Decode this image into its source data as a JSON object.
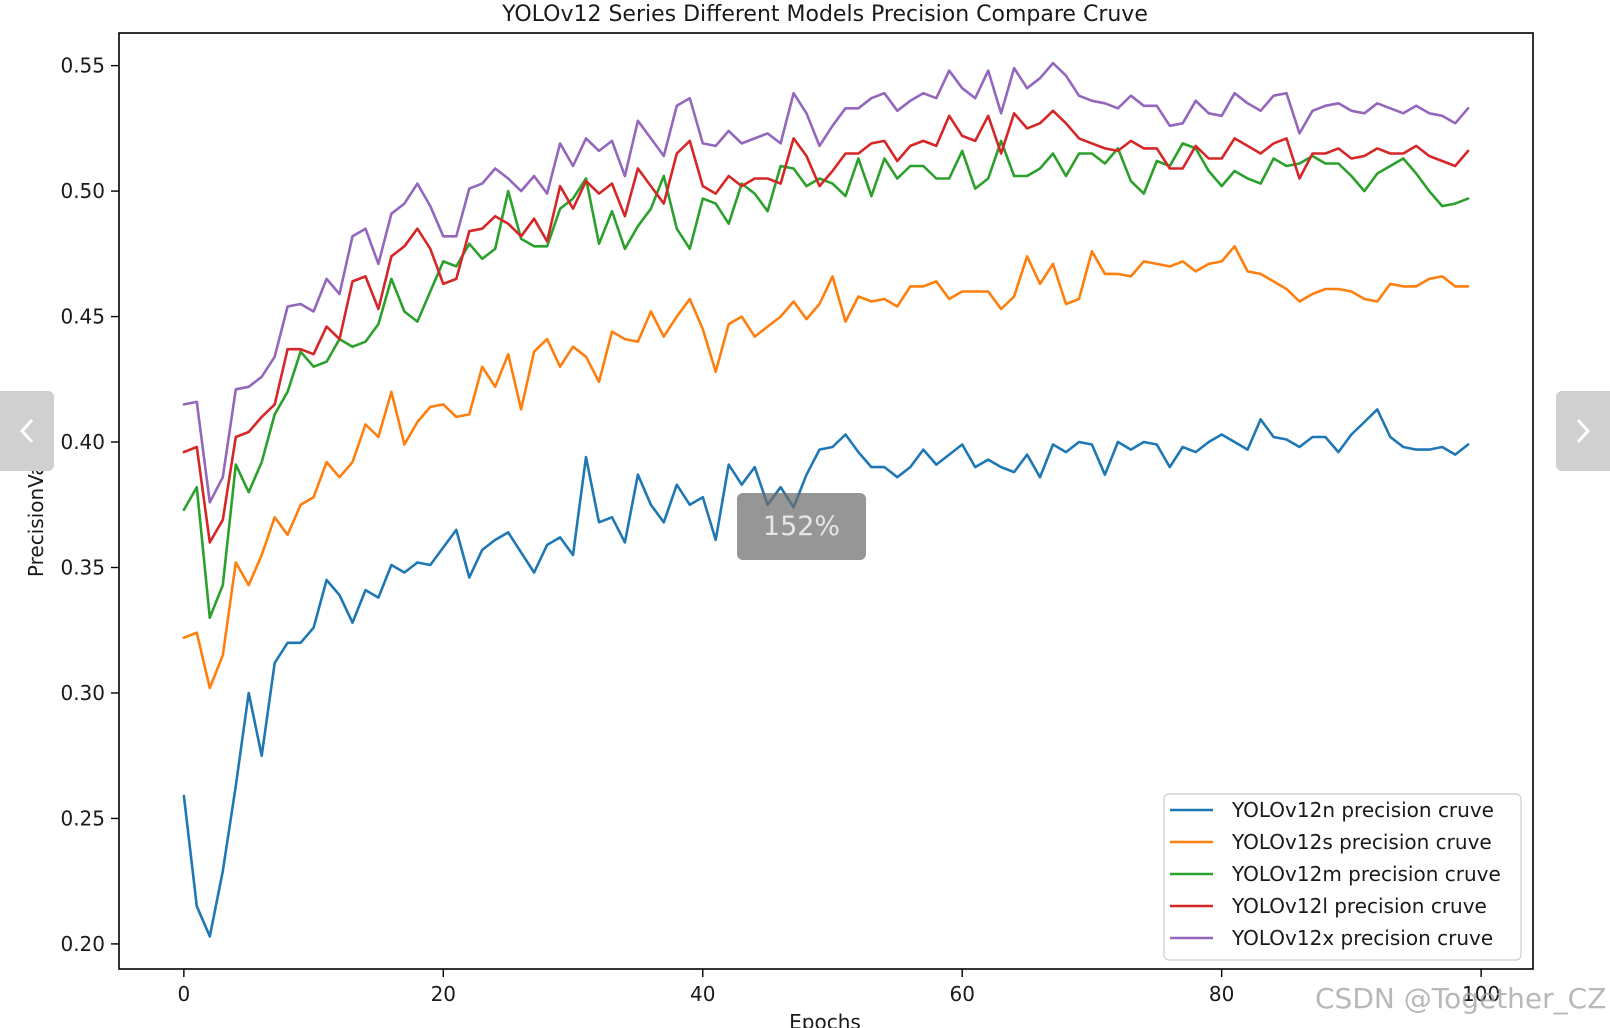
{
  "viewer": {
    "zoom_label": "152%",
    "prev_icon": "chevron-left-icon",
    "next_icon": "chevron-right-icon"
  },
  "watermark": "CSDN @Together_CZ",
  "chart_data": {
    "type": "line",
    "title": "YOLOv12 Series Different Models Precision Compare Cruve",
    "xlabel": "Epochs",
    "ylabel": "PrecisionValue",
    "xlim": [
      -5,
      104
    ],
    "ylim": [
      0.19,
      0.563
    ],
    "xticks": [
      0,
      20,
      40,
      60,
      80,
      100
    ],
    "yticks": [
      0.2,
      0.25,
      0.3,
      0.35,
      0.4,
      0.45,
      0.5,
      0.55
    ],
    "grid": false,
    "legend_position": "lower-right",
    "series": [
      {
        "name": "YOLOv12n precision cruve",
        "color": "#1f77b4",
        "values": [
          0.259,
          0.215,
          0.203,
          0.229,
          0.263,
          0.3,
          0.275,
          0.312,
          0.32,
          0.32,
          0.326,
          0.345,
          0.339,
          0.328,
          0.341,
          0.338,
          0.351,
          0.348,
          0.352,
          0.351,
          0.358,
          0.365,
          0.346,
          0.357,
          0.361,
          0.364,
          0.356,
          0.348,
          0.359,
          0.362,
          0.355,
          0.394,
          0.368,
          0.37,
          0.36,
          0.387,
          0.375,
          0.368,
          0.383,
          0.375,
          0.378,
          0.361,
          0.391,
          0.383,
          0.39,
          0.375,
          0.382,
          0.374,
          0.387,
          0.397,
          0.398,
          0.403,
          0.396,
          0.39,
          0.39,
          0.386,
          0.39,
          0.397,
          0.391,
          0.395,
          0.399,
          0.39,
          0.393,
          0.39,
          0.388,
          0.395,
          0.386,
          0.399,
          0.396,
          0.4,
          0.399,
          0.387,
          0.4,
          0.397,
          0.4,
          0.399,
          0.39,
          0.398,
          0.396,
          0.4,
          0.403,
          0.4,
          0.397,
          0.409,
          0.402,
          0.401,
          0.398,
          0.402,
          0.402,
          0.396,
          0.403,
          0.408,
          0.413,
          0.402,
          0.398,
          0.397,
          0.397,
          0.398,
          0.395,
          0.399
        ]
      },
      {
        "name": "YOLOv12s precision cruve",
        "color": "#ff7f0e",
        "values": [
          0.322,
          0.324,
          0.302,
          0.315,
          0.352,
          0.343,
          0.355,
          0.37,
          0.363,
          0.375,
          0.378,
          0.392,
          0.386,
          0.392,
          0.407,
          0.402,
          0.42,
          0.399,
          0.408,
          0.414,
          0.415,
          0.41,
          0.411,
          0.43,
          0.422,
          0.435,
          0.413,
          0.436,
          0.441,
          0.43,
          0.438,
          0.434,
          0.424,
          0.444,
          0.441,
          0.44,
          0.452,
          0.442,
          0.45,
          0.457,
          0.445,
          0.428,
          0.447,
          0.45,
          0.442,
          0.446,
          0.45,
          0.456,
          0.449,
          0.455,
          0.466,
          0.448,
          0.458,
          0.456,
          0.457,
          0.454,
          0.462,
          0.462,
          0.464,
          0.457,
          0.46,
          0.46,
          0.46,
          0.453,
          0.458,
          0.474,
          0.463,
          0.471,
          0.455,
          0.457,
          0.476,
          0.467,
          0.467,
          0.466,
          0.472,
          0.471,
          0.47,
          0.472,
          0.468,
          0.471,
          0.472,
          0.478,
          0.468,
          0.467,
          0.464,
          0.461,
          0.456,
          0.459,
          0.461,
          0.461,
          0.46,
          0.457,
          0.456,
          0.463,
          0.462,
          0.462,
          0.465,
          0.466,
          0.462,
          0.462
        ]
      },
      {
        "name": "YOLOv12m precision cruve",
        "color": "#2ca02c",
        "values": [
          0.373,
          0.382,
          0.33,
          0.343,
          0.391,
          0.38,
          0.392,
          0.411,
          0.42,
          0.436,
          0.43,
          0.432,
          0.441,
          0.438,
          0.44,
          0.447,
          0.465,
          0.452,
          0.448,
          0.46,
          0.472,
          0.47,
          0.479,
          0.473,
          0.477,
          0.5,
          0.481,
          0.478,
          0.478,
          0.493,
          0.497,
          0.505,
          0.479,
          0.492,
          0.477,
          0.486,
          0.493,
          0.506,
          0.485,
          0.477,
          0.497,
          0.495,
          0.487,
          0.503,
          0.499,
          0.492,
          0.51,
          0.509,
          0.502,
          0.505,
          0.503,
          0.498,
          0.513,
          0.498,
          0.513,
          0.505,
          0.51,
          0.51,
          0.505,
          0.505,
          0.516,
          0.501,
          0.505,
          0.52,
          0.506,
          0.506,
          0.509,
          0.515,
          0.506,
          0.515,
          0.515,
          0.511,
          0.517,
          0.504,
          0.499,
          0.512,
          0.51,
          0.519,
          0.517,
          0.508,
          0.502,
          0.508,
          0.505,
          0.503,
          0.513,
          0.51,
          0.511,
          0.514,
          0.511,
          0.511,
          0.506,
          0.5,
          0.507,
          0.51,
          0.513,
          0.507,
          0.5,
          0.494,
          0.495,
          0.497
        ]
      },
      {
        "name": "YOLOv12l precision cruve",
        "color": "#d62728",
        "values": [
          0.396,
          0.398,
          0.36,
          0.369,
          0.402,
          0.404,
          0.41,
          0.415,
          0.437,
          0.437,
          0.435,
          0.446,
          0.441,
          0.464,
          0.466,
          0.453,
          0.474,
          0.478,
          0.485,
          0.477,
          0.463,
          0.465,
          0.484,
          0.485,
          0.49,
          0.487,
          0.482,
          0.489,
          0.48,
          0.502,
          0.493,
          0.504,
          0.499,
          0.503,
          0.49,
          0.509,
          0.502,
          0.495,
          0.515,
          0.52,
          0.502,
          0.499,
          0.506,
          0.502,
          0.505,
          0.505,
          0.503,
          0.521,
          0.514,
          0.502,
          0.508,
          0.515,
          0.515,
          0.519,
          0.52,
          0.512,
          0.518,
          0.52,
          0.518,
          0.53,
          0.522,
          0.52,
          0.53,
          0.515,
          0.531,
          0.525,
          0.527,
          0.532,
          0.527,
          0.521,
          0.519,
          0.517,
          0.516,
          0.52,
          0.517,
          0.517,
          0.509,
          0.509,
          0.518,
          0.513,
          0.513,
          0.521,
          0.518,
          0.515,
          0.519,
          0.521,
          0.505,
          0.515,
          0.515,
          0.517,
          0.513,
          0.514,
          0.517,
          0.515,
          0.515,
          0.518,
          0.514,
          0.512,
          0.51,
          0.516
        ]
      },
      {
        "name": "YOLOv12x precision cruve",
        "color": "#9467bd",
        "values": [
          0.415,
          0.416,
          0.376,
          0.386,
          0.421,
          0.422,
          0.426,
          0.434,
          0.454,
          0.455,
          0.452,
          0.465,
          0.459,
          0.482,
          0.485,
          0.471,
          0.491,
          0.495,
          0.503,
          0.494,
          0.482,
          0.482,
          0.501,
          0.503,
          0.509,
          0.505,
          0.5,
          0.506,
          0.499,
          0.519,
          0.51,
          0.521,
          0.516,
          0.52,
          0.506,
          0.528,
          0.521,
          0.514,
          0.534,
          0.537,
          0.519,
          0.518,
          0.524,
          0.519,
          0.521,
          0.523,
          0.519,
          0.539,
          0.531,
          0.518,
          0.526,
          0.533,
          0.533,
          0.537,
          0.539,
          0.532,
          0.536,
          0.539,
          0.537,
          0.548,
          0.541,
          0.537,
          0.548,
          0.531,
          0.549,
          0.541,
          0.545,
          0.551,
          0.546,
          0.538,
          0.536,
          0.535,
          0.533,
          0.538,
          0.534,
          0.534,
          0.526,
          0.527,
          0.536,
          0.531,
          0.53,
          0.539,
          0.535,
          0.532,
          0.538,
          0.539,
          0.523,
          0.532,
          0.534,
          0.535,
          0.532,
          0.531,
          0.535,
          0.533,
          0.531,
          0.534,
          0.531,
          0.53,
          0.527,
          0.533
        ]
      }
    ]
  }
}
